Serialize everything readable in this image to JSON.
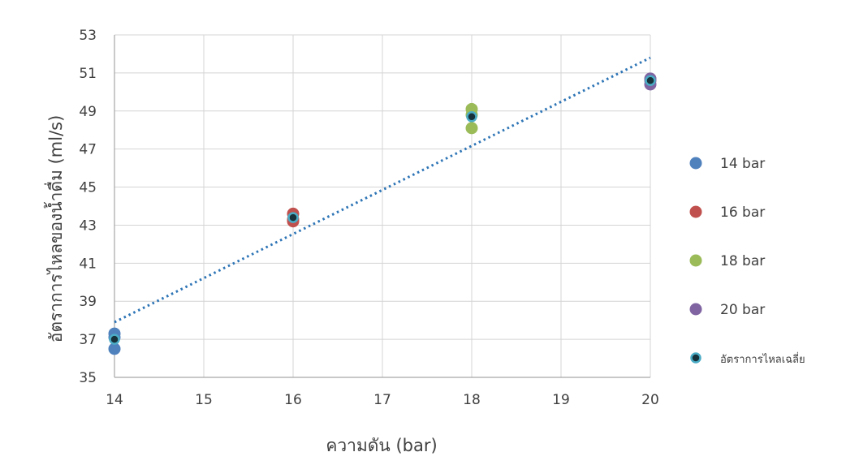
{
  "chart_data": {
    "type": "scatter",
    "title": "",
    "xlabel": "ความดัน (bar)",
    "ylabel": "อัตราการไหลของน้ำดื่ม (ml/s)",
    "xlim": [
      14,
      20
    ],
    "ylim": [
      35,
      53
    ],
    "xticks": [
      14,
      15,
      16,
      17,
      18,
      19,
      20
    ],
    "yticks": [
      35,
      37,
      39,
      41,
      43,
      45,
      47,
      49,
      51,
      53
    ],
    "grid": true,
    "legend_position": "right",
    "series": [
      {
        "name": "14 bar",
        "color": "#4f81bd",
        "points": [
          [
            14,
            37.3
          ],
          [
            14,
            37.1
          ],
          [
            14,
            36.5
          ]
        ]
      },
      {
        "name": "16 bar",
        "color": "#c0504d",
        "points": [
          [
            16,
            43.6
          ],
          [
            16,
            43.3
          ],
          [
            16,
            43.2
          ]
        ]
      },
      {
        "name": "18 bar",
        "color": "#9bbb59",
        "points": [
          [
            18,
            49.1
          ],
          [
            18,
            48.8
          ],
          [
            18,
            48.1
          ]
        ]
      },
      {
        "name": "20 bar",
        "color": "#8064a2",
        "points": [
          [
            20,
            50.7
          ],
          [
            20,
            50.6
          ],
          [
            20,
            50.4
          ]
        ]
      },
      {
        "name": "อัตราการไหลเฉลี่ย",
        "color": "#17323a",
        "edge_color": "#4bacc6",
        "points": [
          [
            14,
            37.0
          ],
          [
            16,
            43.4
          ],
          [
            18,
            48.7
          ],
          [
            20,
            50.6
          ]
        ]
      }
    ],
    "trendline": {
      "type": "linear",
      "style": "dotted",
      "color": "#2e75b6",
      "from": [
        14,
        37.9
      ],
      "to": [
        20,
        51.8
      ]
    }
  }
}
